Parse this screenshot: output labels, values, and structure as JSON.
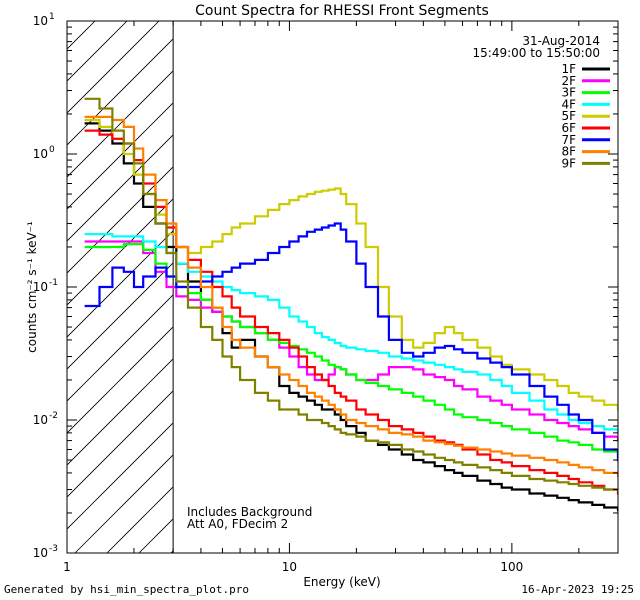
{
  "footer": {
    "generated_by": "Generated by hsi_min_spectra_plot.pro",
    "timestamp": "16-Apr-2023 19:25"
  },
  "chart_data": {
    "type": "line",
    "title": "Count Spectra for RHESSI Front Segments",
    "xlabel": "Energy (keV)",
    "ylabel": "counts cm⁻² s⁻¹ keV⁻¹",
    "xscale": "log",
    "yscale": "log",
    "xlim": [
      1,
      300
    ],
    "ylim": [
      0.001,
      10
    ],
    "x_tick_labels": [
      {
        "value": 1,
        "label": "1"
      },
      {
        "value": 10,
        "label": "10"
      },
      {
        "value": 100,
        "label": "100"
      }
    ],
    "y_tick_labels": [
      {
        "value": 0.001,
        "base": "10",
        "exp": "-3"
      },
      {
        "value": 0.01,
        "base": "10",
        "exp": "-2"
      },
      {
        "value": 0.1,
        "base": "10",
        "exp": "-1"
      },
      {
        "value": 1,
        "base": "10",
        "exp": "0"
      },
      {
        "value": 10,
        "base": "10",
        "exp": "1"
      }
    ],
    "shaded_region": {
      "xmin": 1,
      "xmax": 3,
      "style": "diagonal-hatch"
    },
    "date": "31-Aug-2014",
    "time_range": "15:49:00 to 15:50:00",
    "annotations": [
      "Includes Background",
      "Att A0, FDecim 2"
    ],
    "legend_position": "top-right",
    "series": [
      {
        "name": "1F",
        "color": "#000000",
        "x": [
          1.2,
          1.4,
          1.6,
          1.8,
          2.0,
          2.2,
          2.5,
          2.8,
          3.1,
          3.5,
          4.0,
          4.5,
          5.0,
          5.5,
          6.0,
          7.0,
          8.0,
          9.0,
          10.0,
          11.0,
          12.0,
          13.0,
          14.0,
          15.0,
          16.0,
          17.0,
          18.0,
          20.0,
          22.0,
          25.0,
          28.0,
          32.0,
          36.0,
          40.0,
          45.0,
          50.0,
          55.0,
          60.0,
          70.0,
          80.0,
          90.0,
          100.0,
          120.0,
          140.0,
          160.0,
          180.0,
          200.0,
          230.0,
          260.0,
          300.0
        ],
        "values": [
          1.7,
          1.5,
          1.2,
          0.85,
          0.6,
          0.4,
          0.3,
          0.2,
          0.15,
          0.11,
          0.08,
          0.065,
          0.045,
          0.035,
          0.04,
          0.03,
          0.025,
          0.018,
          0.016,
          0.015,
          0.014,
          0.013,
          0.012,
          0.012,
          0.011,
          0.01,
          0.009,
          0.008,
          0.007,
          0.0065,
          0.006,
          0.0055,
          0.005,
          0.0048,
          0.0045,
          0.0042,
          0.004,
          0.0038,
          0.0035,
          0.0033,
          0.0031,
          0.003,
          0.0028,
          0.0027,
          0.0026,
          0.0025,
          0.0024,
          0.0023,
          0.0022,
          0.0021
        ]
      },
      {
        "name": "2F",
        "color": "#ff00ff",
        "x": [
          1.2,
          1.4,
          1.6,
          1.8,
          2.0,
          2.2,
          2.5,
          2.8,
          3.1,
          3.5,
          4.0,
          4.5,
          5.0,
          5.5,
          6.0,
          7.0,
          8.0,
          9.0,
          10.0,
          11.0,
          12.0,
          13.0,
          14.0,
          15.0,
          16.0,
          17.0,
          18.0,
          20.0,
          22.0,
          25.0,
          28.0,
          32.0,
          36.0,
          40.0,
          45.0,
          50.0,
          55.0,
          60.0,
          70.0,
          80.0,
          90.0,
          100.0,
          120.0,
          140.0,
          160.0,
          180.0,
          200.0,
          230.0,
          260.0,
          300.0
        ],
        "values": [
          0.22,
          0.22,
          0.22,
          0.22,
          0.22,
          0.18,
          0.13,
          0.1,
          0.085,
          0.08,
          0.07,
          0.065,
          0.06,
          0.055,
          0.05,
          0.045,
          0.04,
          0.035,
          0.03,
          0.025,
          0.022,
          0.02,
          0.02,
          0.022,
          0.025,
          0.024,
          0.022,
          0.02,
          0.02,
          0.022,
          0.025,
          0.025,
          0.024,
          0.022,
          0.021,
          0.02,
          0.018,
          0.017,
          0.015,
          0.014,
          0.013,
          0.012,
          0.011,
          0.01,
          0.0095,
          0.009,
          0.0085,
          0.008,
          0.0075,
          0.007
        ]
      },
      {
        "name": "3F",
        "color": "#00ff00",
        "x": [
          1.2,
          1.4,
          1.6,
          1.8,
          2.0,
          2.2,
          2.5,
          2.8,
          3.1,
          3.5,
          4.0,
          4.5,
          5.0,
          5.5,
          6.0,
          7.0,
          8.0,
          9.0,
          10.0,
          11.0,
          12.0,
          13.0,
          14.0,
          15.0,
          16.0,
          17.0,
          18.0,
          20.0,
          22.0,
          25.0,
          28.0,
          32.0,
          36.0,
          40.0,
          45.0,
          50.0,
          55.0,
          60.0,
          70.0,
          80.0,
          90.0,
          100.0,
          120.0,
          140.0,
          160.0,
          180.0,
          200.0,
          230.0,
          260.0,
          300.0
        ],
        "values": [
          0.2,
          0.2,
          0.2,
          0.21,
          0.21,
          0.19,
          0.15,
          0.12,
          0.1,
          0.09,
          0.08,
          0.07,
          0.06,
          0.055,
          0.05,
          0.045,
          0.04,
          0.038,
          0.036,
          0.034,
          0.032,
          0.03,
          0.028,
          0.026,
          0.025,
          0.024,
          0.022,
          0.02,
          0.019,
          0.018,
          0.017,
          0.016,
          0.015,
          0.014,
          0.013,
          0.012,
          0.011,
          0.0105,
          0.01,
          0.0095,
          0.009,
          0.0085,
          0.008,
          0.0075,
          0.007,
          0.0068,
          0.0065,
          0.006,
          0.0058,
          0.0055
        ]
      },
      {
        "name": "4F",
        "color": "#00ffff",
        "x": [
          1.2,
          1.4,
          1.6,
          1.8,
          2.0,
          2.2,
          2.5,
          2.8,
          3.1,
          3.5,
          4.0,
          4.5,
          5.0,
          5.5,
          6.0,
          7.0,
          8.0,
          9.0,
          10.0,
          11.0,
          12.0,
          13.0,
          14.0,
          15.0,
          16.0,
          17.0,
          18.0,
          20.0,
          22.0,
          25.0,
          28.0,
          32.0,
          36.0,
          40.0,
          45.0,
          50.0,
          55.0,
          60.0,
          70.0,
          80.0,
          90.0,
          100.0,
          120.0,
          140.0,
          160.0,
          180.0,
          200.0,
          230.0,
          260.0,
          300.0
        ],
        "values": [
          0.25,
          0.25,
          0.24,
          0.24,
          0.24,
          0.22,
          0.2,
          0.18,
          0.15,
          0.13,
          0.12,
          0.11,
          0.1,
          0.095,
          0.09,
          0.085,
          0.08,
          0.07,
          0.06,
          0.055,
          0.05,
          0.045,
          0.042,
          0.04,
          0.038,
          0.036,
          0.035,
          0.034,
          0.033,
          0.032,
          0.03,
          0.029,
          0.028,
          0.027,
          0.026,
          0.025,
          0.024,
          0.023,
          0.022,
          0.02,
          0.018,
          0.016,
          0.014,
          0.012,
          0.011,
          0.01,
          0.0095,
          0.009,
          0.0085,
          0.008
        ]
      },
      {
        "name": "5F",
        "color": "#cccc00",
        "x": [
          1.2,
          1.4,
          1.6,
          1.8,
          2.0,
          2.2,
          2.5,
          2.8,
          3.1,
          3.5,
          4.0,
          4.5,
          5.0,
          5.5,
          6.0,
          7.0,
          8.0,
          9.0,
          10.0,
          11.0,
          12.0,
          13.0,
          14.0,
          15.0,
          16.0,
          17.0,
          18.0,
          20.0,
          22.0,
          25.0,
          28.0,
          32.0,
          36.0,
          40.0,
          45.0,
          50.0,
          55.0,
          60.0,
          70.0,
          80.0,
          90.0,
          100.0,
          120.0,
          140.0,
          160.0,
          180.0,
          200.0,
          230.0,
          260.0,
          300.0
        ],
        "values": [
          1.8,
          1.6,
          1.3,
          1.0,
          0.7,
          0.5,
          0.35,
          0.25,
          0.2,
          0.18,
          0.2,
          0.22,
          0.25,
          0.28,
          0.3,
          0.34,
          0.38,
          0.42,
          0.45,
          0.48,
          0.5,
          0.52,
          0.53,
          0.54,
          0.55,
          0.5,
          0.42,
          0.3,
          0.2,
          0.1,
          0.06,
          0.04,
          0.035,
          0.038,
          0.045,
          0.05,
          0.045,
          0.04,
          0.035,
          0.03,
          0.026,
          0.024,
          0.022,
          0.02,
          0.018,
          0.016,
          0.015,
          0.014,
          0.013,
          0.012
        ]
      },
      {
        "name": "6F",
        "color": "#ff0000",
        "x": [
          1.2,
          1.4,
          1.6,
          1.8,
          2.0,
          2.2,
          2.5,
          2.8,
          3.1,
          3.5,
          4.0,
          4.5,
          5.0,
          5.5,
          6.0,
          7.0,
          8.0,
          9.0,
          10.0,
          11.0,
          12.0,
          13.0,
          14.0,
          15.0,
          16.0,
          17.0,
          18.0,
          20.0,
          22.0,
          25.0,
          28.0,
          32.0,
          36.0,
          40.0,
          45.0,
          50.0,
          55.0,
          60.0,
          70.0,
          80.0,
          90.0,
          100.0,
          120.0,
          140.0,
          160.0,
          180.0,
          200.0,
          230.0,
          260.0,
          300.0
        ],
        "values": [
          1.5,
          1.4,
          1.3,
          1.2,
          0.9,
          0.6,
          0.4,
          0.28,
          0.2,
          0.16,
          0.13,
          0.1,
          0.085,
          0.07,
          0.06,
          0.05,
          0.045,
          0.04,
          0.035,
          0.03,
          0.025,
          0.022,
          0.02,
          0.018,
          0.016,
          0.015,
          0.014,
          0.012,
          0.011,
          0.01,
          0.009,
          0.0085,
          0.008,
          0.0075,
          0.007,
          0.0068,
          0.0065,
          0.006,
          0.0055,
          0.005,
          0.0048,
          0.0045,
          0.0042,
          0.004,
          0.0038,
          0.0036,
          0.0034,
          0.0032,
          0.003,
          0.0028
        ]
      },
      {
        "name": "7F",
        "color": "#0000ff",
        "x": [
          1.2,
          1.4,
          1.6,
          1.8,
          2.0,
          2.2,
          2.5,
          2.8,
          3.1,
          3.5,
          4.0,
          4.5,
          5.0,
          5.5,
          6.0,
          7.0,
          8.0,
          9.0,
          10.0,
          11.0,
          12.0,
          13.0,
          14.0,
          15.0,
          16.0,
          17.0,
          18.0,
          20.0,
          22.0,
          25.0,
          28.0,
          32.0,
          36.0,
          40.0,
          45.0,
          50.0,
          55.0,
          60.0,
          70.0,
          80.0,
          90.0,
          100.0,
          120.0,
          140.0,
          160.0,
          180.0,
          200.0,
          230.0,
          260.0,
          300.0
        ],
        "values": [
          0.072,
          0.1,
          0.14,
          0.13,
          0.1,
          0.12,
          0.14,
          0.12,
          0.1,
          0.1,
          0.11,
          0.12,
          0.13,
          0.14,
          0.15,
          0.16,
          0.18,
          0.2,
          0.22,
          0.24,
          0.26,
          0.27,
          0.28,
          0.29,
          0.3,
          0.27,
          0.22,
          0.15,
          0.1,
          0.06,
          0.04,
          0.032,
          0.03,
          0.032,
          0.035,
          0.036,
          0.034,
          0.032,
          0.029,
          0.027,
          0.025,
          0.022,
          0.018,
          0.015,
          0.013,
          0.011,
          0.01,
          0.008,
          0.006,
          0.005
        ]
      },
      {
        "name": "8F",
        "color": "#ff8000",
        "x": [
          1.2,
          1.4,
          1.6,
          1.8,
          2.0,
          2.2,
          2.5,
          2.8,
          3.1,
          3.5,
          4.0,
          4.5,
          5.0,
          5.5,
          6.0,
          7.0,
          8.0,
          9.0,
          10.0,
          11.0,
          12.0,
          13.0,
          14.0,
          15.0,
          16.0,
          17.0,
          18.0,
          20.0,
          22.0,
          25.0,
          28.0,
          32.0,
          36.0,
          40.0,
          45.0,
          50.0,
          55.0,
          60.0,
          70.0,
          80.0,
          90.0,
          100.0,
          120.0,
          140.0,
          160.0,
          180.0,
          200.0,
          230.0,
          260.0,
          300.0
        ],
        "values": [
          1.9,
          1.9,
          1.8,
          1.6,
          1.1,
          0.7,
          0.45,
          0.3,
          0.2,
          0.14,
          0.1,
          0.07,
          0.05,
          0.04,
          0.035,
          0.03,
          0.025,
          0.022,
          0.02,
          0.018,
          0.016,
          0.015,
          0.014,
          0.013,
          0.012,
          0.011,
          0.01,
          0.0095,
          0.009,
          0.0085,
          0.008,
          0.0078,
          0.0075,
          0.007,
          0.0068,
          0.0066,
          0.0064,
          0.0062,
          0.006,
          0.0058,
          0.0056,
          0.0054,
          0.0052,
          0.005,
          0.0048,
          0.0046,
          0.0044,
          0.0042,
          0.004,
          0.0038
        ]
      },
      {
        "name": "9F",
        "color": "#808000",
        "x": [
          1.2,
          1.4,
          1.6,
          1.8,
          2.0,
          2.2,
          2.5,
          2.8,
          3.1,
          3.5,
          4.0,
          4.5,
          5.0,
          5.5,
          6.0,
          7.0,
          8.0,
          9.0,
          10.0,
          11.0,
          12.0,
          13.0,
          14.0,
          15.0,
          16.0,
          17.0,
          18.0,
          20.0,
          22.0,
          25.0,
          28.0,
          32.0,
          36.0,
          40.0,
          45.0,
          50.0,
          55.0,
          60.0,
          70.0,
          80.0,
          90.0,
          100.0,
          120.0,
          140.0,
          160.0,
          180.0,
          200.0,
          230.0,
          260.0,
          300.0
        ],
        "values": [
          2.6,
          2.2,
          1.5,
          1.2,
          0.85,
          0.5,
          0.3,
          0.18,
          0.11,
          0.07,
          0.05,
          0.04,
          0.03,
          0.025,
          0.02,
          0.016,
          0.014,
          0.012,
          0.012,
          0.011,
          0.01,
          0.01,
          0.0095,
          0.009,
          0.0085,
          0.008,
          0.0078,
          0.0075,
          0.007,
          0.0068,
          0.0065,
          0.006,
          0.0058,
          0.0055,
          0.0052,
          0.005,
          0.0048,
          0.0046,
          0.0044,
          0.0042,
          0.004,
          0.0038,
          0.0036,
          0.0035,
          0.0034,
          0.0033,
          0.0032,
          0.0031,
          0.003,
          0.0029
        ]
      }
    ]
  }
}
